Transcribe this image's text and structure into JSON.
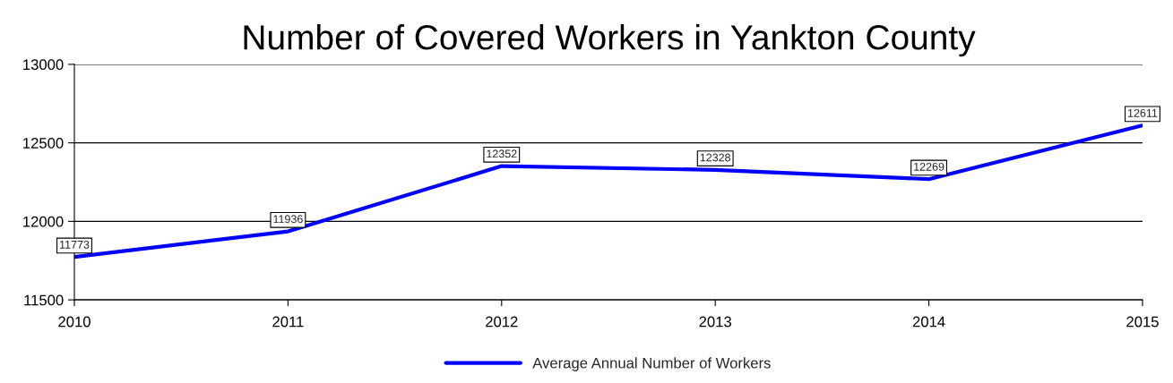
{
  "chart_data": {
    "type": "line",
    "title": "Number of Covered Workers in Yankton County",
    "x": [
      2010,
      2011,
      2012,
      2013,
      2014,
      2015
    ],
    "series": [
      {
        "name": "Average Annual Number of Workers",
        "color": "#0000ff",
        "values": [
          11773,
          11936,
          12352,
          12328,
          12269,
          12611
        ]
      }
    ],
    "xlim": [
      2010,
      2015
    ],
    "xticks": [
      2010,
      2011,
      2012,
      2013,
      2014,
      2015
    ],
    "ylim": [
      11500,
      13000
    ],
    "yticks": [
      11500,
      12000,
      12500,
      13000
    ],
    "grid": "y",
    "legend": "bottom",
    "data_labels": true,
    "marker": "none",
    "line_style": "solid"
  }
}
